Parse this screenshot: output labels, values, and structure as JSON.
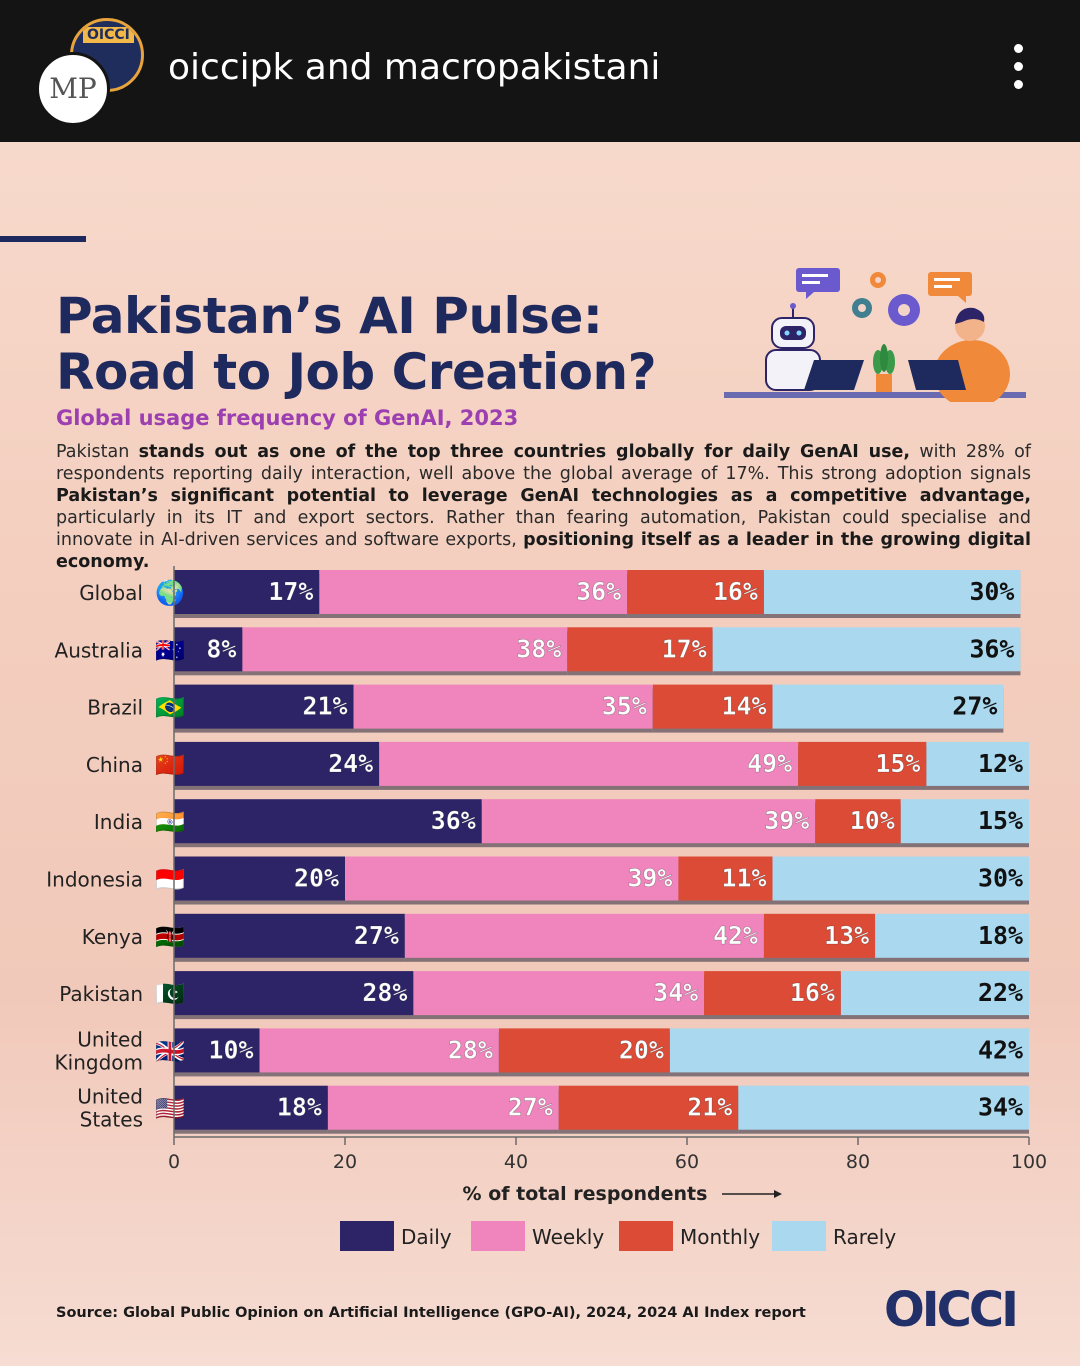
{
  "header": {
    "username": "oiccipk and macropakistani",
    "avatar_back_text": "OICCI",
    "avatar_front_text": "MP"
  },
  "infographic": {
    "title_line1": "Pakistan’s AI Pulse:",
    "title_line2": "Road to Job Creation?",
    "subtitle": "Global usage frequency of GenAI, 2023",
    "body": [
      {
        "t": "Pakistan ",
        "b": false
      },
      {
        "t": "stands out as one of the top three countries globally for daily GenAI use,",
        "b": true
      },
      {
        "t": " with 28% of respondents reporting daily interaction, well above the global average of 17%. This strong adoption signals ",
        "b": false
      },
      {
        "t": "Pakistan’s significant potential to leverage GenAI technologies as a competitive advantage,",
        "b": true
      },
      {
        "t": " particularly in its IT and export sectors. Rather than fearing automation, Pakistan could specialise and innovate in AI-driven services and software exports, ",
        "b": false
      },
      {
        "t": "positioning itself as a leader in the growing digital economy.",
        "b": true
      }
    ],
    "source": "Source: Global Public Opinion on Artificial Intelligence (GPO-AI), 2024, 2024 AI Index report",
    "logo_text": "OICCI"
  },
  "colors": {
    "daily": "#2d2468",
    "weekly": "#f085bd",
    "monthly": "#dc4b36",
    "rarely": "#a9d8ef",
    "axis": "#6b6b6b",
    "title": "#1e2a5e"
  },
  "chart_data": {
    "type": "bar",
    "orientation": "horizontal",
    "stacked": true,
    "categories": [
      "Global",
      "Australia",
      "Brazil",
      "China",
      "India",
      "Indonesia",
      "Kenya",
      "Pakistan",
      "United Kingdom",
      "United States"
    ],
    "category_lines": [
      [
        "Global"
      ],
      [
        "Australia"
      ],
      [
        "Brazil"
      ],
      [
        "China"
      ],
      [
        "India"
      ],
      [
        "Indonesia"
      ],
      [
        "Kenya"
      ],
      [
        "Pakistan"
      ],
      [
        "United",
        "Kingdom"
      ],
      [
        "United",
        "States"
      ]
    ],
    "flags": [
      "🌍",
      "🇦🇺",
      "🇧🇷",
      "🇨🇳",
      "🇮🇳",
      "🇮🇩",
      "🇰🇪",
      "🇵🇰",
      "🇬🇧",
      "🇺🇸"
    ],
    "series": [
      {
        "name": "Daily",
        "values": [
          17,
          8,
          21,
          24,
          36,
          20,
          27,
          28,
          10,
          18
        ]
      },
      {
        "name": "Weekly",
        "values": [
          36,
          38,
          35,
          49,
          39,
          39,
          42,
          34,
          28,
          27
        ]
      },
      {
        "name": "Monthly",
        "values": [
          16,
          17,
          14,
          15,
          10,
          11,
          13,
          16,
          20,
          21
        ]
      },
      {
        "name": "Rarely",
        "values": [
          30,
          36,
          27,
          12,
          15,
          30,
          18,
          22,
          42,
          34
        ]
      }
    ],
    "label_suffix": "%",
    "xlabel": "% of total respondents",
    "xlim": [
      0,
      100
    ],
    "xticks": [
      0,
      20,
      40,
      60,
      80,
      100
    ],
    "legend": [
      "Daily",
      "Weekly",
      "Monthly",
      "Rarely"
    ],
    "legend_position": "bottom"
  }
}
